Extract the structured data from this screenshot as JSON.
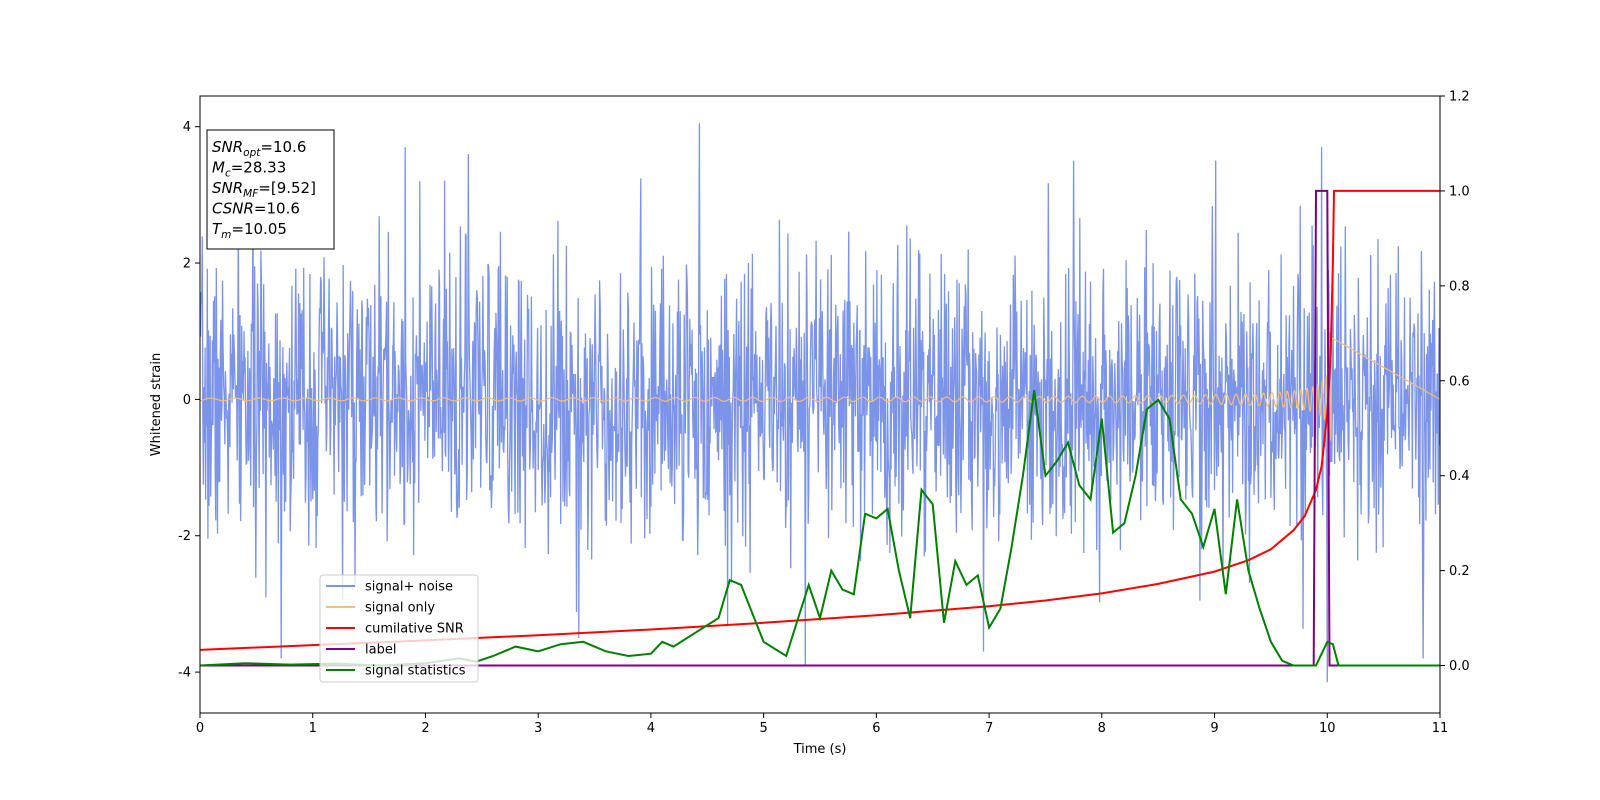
{
  "chart_data": {
    "type": "line",
    "xlabel": "Time (s)",
    "ylabel": "Whitened strain",
    "xlim": [
      0,
      11
    ],
    "ylim": [
      -4.6,
      4.45
    ],
    "ylim_right": [
      -0.1,
      1.2
    ],
    "x_ticks": [
      0,
      1,
      2,
      3,
      4,
      5,
      6,
      7,
      8,
      9,
      10,
      11
    ],
    "y_ticks": [
      -4,
      -2,
      0,
      2,
      4
    ],
    "y_ticks_right": [
      "0.0",
      "0.2",
      "0.4",
      "0.6",
      "0.8",
      "1.0",
      "1.2"
    ],
    "grid": false,
    "legend_position": "lower-left",
    "colors": {
      "noise": "#7b93e8",
      "signal": "#f3be74",
      "cum_snr": "#ff0000",
      "label": "#800080",
      "stats": "#008000"
    },
    "info_box": [
      {
        "sym": "SNR",
        "sub": "opt",
        "rest": "=10.6"
      },
      {
        "sym": "M",
        "sub": "c",
        "rest": "=28.33"
      },
      {
        "sym": "SNR",
        "sub": "MF",
        "rest": "=[9.52]"
      },
      {
        "sym": "CSNR",
        "sub": "",
        "rest": "=10.6"
      },
      {
        "sym": "T",
        "sub": "m",
        "rest": "=10.05"
      }
    ],
    "series": [
      {
        "name": "signal+ noise",
        "axis": "left",
        "kind": "noise",
        "sample_rate": 200,
        "x_range": [
          0,
          11
        ],
        "typical_range": [
          -2.6,
          2.7
        ],
        "peaks": [
          [
            0.72,
            -3.8
          ],
          [
            1.82,
            3.7
          ],
          [
            2.38,
            3.6
          ],
          [
            3.36,
            -3.5
          ],
          [
            4.43,
            4.05
          ],
          [
            4.68,
            -3.3
          ],
          [
            5.37,
            -3.9
          ],
          [
            6.95,
            -3.7
          ],
          [
            7.75,
            3.5
          ],
          [
            9.01,
            3.5
          ],
          [
            9.95,
            3.7
          ],
          [
            10.0,
            -4.15
          ],
          [
            10.85,
            -3.8
          ]
        ]
      },
      {
        "name": "signal only",
        "axis": "left",
        "kind": "chirp",
        "x_range": [
          0,
          10.05
        ],
        "amplitude_start": 0.02,
        "amplitude_peak": 1.0,
        "merger_time": 10.05
      },
      {
        "name": "cumilative SNR",
        "axis": "right",
        "x": [
          0,
          1,
          2,
          3,
          4,
          5,
          6,
          7,
          7.5,
          8,
          8.5,
          9,
          9.3,
          9.5,
          9.7,
          9.8,
          9.9,
          9.95,
          10.0,
          10.03,
          10.05,
          10.06,
          11
        ],
        "y": [
          0.033,
          0.043,
          0.053,
          0.064,
          0.076,
          0.09,
          0.106,
          0.125,
          0.137,
          0.152,
          0.172,
          0.198,
          0.222,
          0.245,
          0.285,
          0.315,
          0.37,
          0.42,
          0.53,
          0.66,
          0.85,
          1.0,
          1.0
        ]
      },
      {
        "name": "label",
        "axis": "right",
        "x": [
          0,
          9.88,
          9.9,
          10.0,
          10.02,
          11
        ],
        "y": [
          0,
          0,
          1.0,
          1.0,
          0,
          0
        ]
      },
      {
        "name": "signal statistics",
        "axis": "right",
        "x": [
          0,
          0.4,
          0.8,
          1.2,
          1.6,
          2.0,
          2.15,
          2.3,
          2.45,
          2.6,
          2.8,
          3.0,
          3.2,
          3.4,
          3.6,
          3.8,
          4.0,
          4.1,
          4.2,
          4.4,
          4.6,
          4.7,
          4.8,
          5.0,
          5.2,
          5.4,
          5.5,
          5.6,
          5.7,
          5.8,
          5.9,
          6.0,
          6.1,
          6.2,
          6.3,
          6.4,
          6.5,
          6.6,
          6.7,
          6.8,
          6.9,
          7.0,
          7.1,
          7.2,
          7.3,
          7.4,
          7.5,
          7.6,
          7.7,
          7.8,
          7.9,
          8.0,
          8.1,
          8.2,
          8.3,
          8.4,
          8.5,
          8.6,
          8.7,
          8.8,
          8.9,
          9.0,
          9.1,
          9.2,
          9.3,
          9.4,
          9.5,
          9.6,
          9.7,
          9.8,
          9.9,
          10.0,
          10.05,
          10.1,
          11
        ],
        "y": [
          0.0,
          0.005,
          0.002,
          0.004,
          0.0,
          0.005,
          0.01,
          0.015,
          0.008,
          0.02,
          0.04,
          0.03,
          0.045,
          0.05,
          0.03,
          0.02,
          0.025,
          0.05,
          0.04,
          0.07,
          0.1,
          0.18,
          0.17,
          0.05,
          0.02,
          0.17,
          0.1,
          0.2,
          0.16,
          0.15,
          0.32,
          0.31,
          0.33,
          0.2,
          0.1,
          0.37,
          0.34,
          0.09,
          0.22,
          0.17,
          0.19,
          0.08,
          0.12,
          0.25,
          0.4,
          0.58,
          0.4,
          0.43,
          0.47,
          0.38,
          0.35,
          0.52,
          0.28,
          0.3,
          0.4,
          0.54,
          0.56,
          0.52,
          0.35,
          0.32,
          0.25,
          0.33,
          0.15,
          0.35,
          0.2,
          0.12,
          0.05,
          0.01,
          0.0,
          0.0,
          0.0,
          0.05,
          0.045,
          0.0,
          0.0
        ]
      }
    ]
  }
}
